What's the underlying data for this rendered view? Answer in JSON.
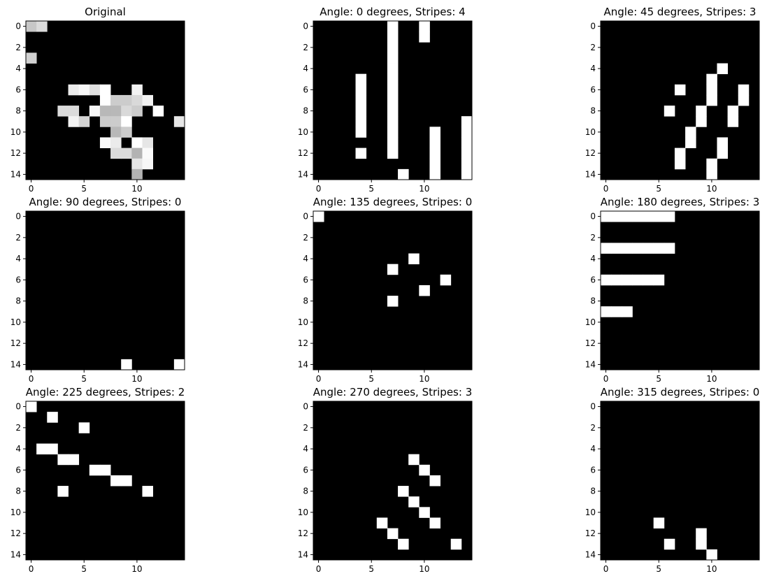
{
  "chart_data": [
    {
      "type": "heatmap",
      "title": "Original",
      "colormap": "gray",
      "xticks": [
        0,
        5,
        10
      ],
      "yticks": [
        0,
        2,
        4,
        6,
        8,
        10,
        12,
        14
      ],
      "grid_size": [
        15,
        15
      ],
      "cells": [
        [
          0,
          0,
          0.78
        ],
        [
          0,
          1,
          0.86
        ],
        [
          3,
          0,
          0.82
        ],
        [
          6,
          4,
          0.92
        ],
        [
          6,
          5,
          0.97
        ],
        [
          6,
          6,
          0.88
        ],
        [
          6,
          7,
          1.0
        ],
        [
          6,
          10,
          0.95
        ],
        [
          7,
          7,
          1.0
        ],
        [
          7,
          8,
          0.8
        ],
        [
          7,
          9,
          0.8
        ],
        [
          7,
          10,
          0.85
        ],
        [
          7,
          11,
          0.95
        ],
        [
          8,
          3,
          0.86
        ],
        [
          8,
          4,
          0.86
        ],
        [
          8,
          6,
          0.97
        ],
        [
          8,
          7,
          0.72
        ],
        [
          8,
          8,
          0.72
        ],
        [
          8,
          9,
          0.85
        ],
        [
          8,
          10,
          0.8
        ],
        [
          8,
          12,
          1.0
        ],
        [
          9,
          4,
          0.95
        ],
        [
          9,
          5,
          0.83
        ],
        [
          9,
          7,
          0.8
        ],
        [
          9,
          8,
          0.8
        ],
        [
          9,
          9,
          1.0
        ],
        [
          9,
          14,
          0.9
        ],
        [
          10,
          8,
          0.72
        ],
        [
          10,
          9,
          0.8
        ],
        [
          11,
          7,
          0.98
        ],
        [
          11,
          8,
          0.92
        ],
        [
          11,
          10,
          1.0
        ],
        [
          11,
          11,
          0.9
        ],
        [
          12,
          8,
          0.86
        ],
        [
          12,
          9,
          0.86
        ],
        [
          12,
          10,
          0.7
        ],
        [
          12,
          11,
          0.98
        ],
        [
          13,
          10,
          0.9
        ],
        [
          13,
          11,
          0.97
        ],
        [
          14,
          10,
          0.7
        ]
      ]
    },
    {
      "type": "heatmap",
      "title": "Angle: 0 degrees, Stripes: 4",
      "colormap": "gray",
      "xticks": [
        0,
        5,
        10
      ],
      "yticks": [
        0,
        2,
        4,
        6,
        8,
        10,
        12,
        14
      ],
      "grid_size": [
        15,
        15
      ],
      "cells": [
        [
          0,
          7,
          1
        ],
        [
          1,
          7,
          1
        ],
        [
          2,
          7,
          1
        ],
        [
          3,
          7,
          1
        ],
        [
          4,
          7,
          1
        ],
        [
          5,
          7,
          1
        ],
        [
          6,
          7,
          1
        ],
        [
          7,
          7,
          1
        ],
        [
          8,
          7,
          1
        ],
        [
          9,
          7,
          1
        ],
        [
          10,
          7,
          1
        ],
        [
          11,
          7,
          1
        ],
        [
          12,
          7,
          1
        ],
        [
          0,
          10,
          1
        ],
        [
          1,
          10,
          1
        ],
        [
          5,
          4,
          1
        ],
        [
          6,
          4,
          1
        ],
        [
          7,
          4,
          1
        ],
        [
          8,
          4,
          1
        ],
        [
          9,
          4,
          1
        ],
        [
          10,
          4,
          1
        ],
        [
          12,
          4,
          1
        ],
        [
          14,
          8,
          1
        ],
        [
          10,
          11,
          1
        ],
        [
          11,
          11,
          1
        ],
        [
          12,
          11,
          1
        ],
        [
          13,
          11,
          1
        ],
        [
          14,
          11,
          1
        ],
        [
          9,
          14,
          1
        ],
        [
          10,
          14,
          1
        ],
        [
          11,
          14,
          1
        ],
        [
          12,
          14,
          1
        ],
        [
          13,
          14,
          1
        ],
        [
          14,
          14,
          1
        ]
      ]
    },
    {
      "type": "heatmap",
      "title": "Angle: 45 degrees, Stripes: 3",
      "colormap": "gray",
      "xticks": [
        0,
        5,
        10
      ],
      "yticks": [
        0,
        2,
        4,
        6,
        8,
        10,
        12,
        14
      ],
      "grid_size": [
        15,
        15
      ],
      "cells": [
        [
          4,
          11,
          1
        ],
        [
          5,
          10,
          1
        ],
        [
          6,
          10,
          1
        ],
        [
          7,
          10,
          1
        ],
        [
          6,
          13,
          1
        ],
        [
          7,
          13,
          1
        ],
        [
          6,
          7,
          1
        ],
        [
          8,
          6,
          1
        ],
        [
          8,
          9,
          1
        ],
        [
          9,
          9,
          1
        ],
        [
          8,
          12,
          1
        ],
        [
          9,
          12,
          1
        ],
        [
          10,
          8,
          1
        ],
        [
          11,
          8,
          1
        ],
        [
          11,
          11,
          1
        ],
        [
          12,
          11,
          1
        ],
        [
          12,
          7,
          1
        ],
        [
          13,
          7,
          1
        ],
        [
          13,
          10,
          1
        ],
        [
          14,
          10,
          1
        ]
      ]
    },
    {
      "type": "heatmap",
      "title": "Angle: 90 degrees, Stripes: 0",
      "colormap": "gray",
      "xticks": [
        0,
        5,
        10
      ],
      "yticks": [
        0,
        2,
        4,
        6,
        8,
        10,
        12,
        14
      ],
      "grid_size": [
        15,
        15
      ],
      "cells": [
        [
          14,
          9,
          1
        ],
        [
          14,
          14,
          1
        ]
      ]
    },
    {
      "type": "heatmap",
      "title": "Angle: 135 degrees, Stripes: 0",
      "colormap": "gray",
      "xticks": [
        0,
        5,
        10
      ],
      "yticks": [
        0,
        2,
        4,
        6,
        8,
        10,
        12,
        14
      ],
      "grid_size": [
        15,
        15
      ],
      "cells": [
        [
          0,
          0,
          1
        ],
        [
          4,
          9,
          1
        ],
        [
          5,
          7,
          1
        ],
        [
          6,
          12,
          1
        ],
        [
          7,
          10,
          1
        ],
        [
          8,
          7,
          1
        ]
      ]
    },
    {
      "type": "heatmap",
      "title": "Angle: 180 degrees, Stripes: 3",
      "colormap": "gray",
      "xticks": [
        0,
        5,
        10
      ],
      "yticks": [
        0,
        2,
        4,
        6,
        8,
        10,
        12,
        14
      ],
      "grid_size": [
        15,
        15
      ],
      "cells": [
        [
          0,
          0,
          1
        ],
        [
          0,
          1,
          1
        ],
        [
          0,
          2,
          1
        ],
        [
          0,
          3,
          1
        ],
        [
          0,
          4,
          1
        ],
        [
          0,
          5,
          1
        ],
        [
          0,
          6,
          1
        ],
        [
          3,
          0,
          1
        ],
        [
          3,
          1,
          1
        ],
        [
          3,
          2,
          1
        ],
        [
          3,
          3,
          1
        ],
        [
          3,
          4,
          1
        ],
        [
          3,
          5,
          1
        ],
        [
          3,
          6,
          1
        ],
        [
          6,
          0,
          1
        ],
        [
          6,
          1,
          1
        ],
        [
          6,
          2,
          1
        ],
        [
          6,
          3,
          1
        ],
        [
          6,
          4,
          1
        ],
        [
          6,
          5,
          1
        ],
        [
          9,
          0,
          1
        ],
        [
          9,
          1,
          1
        ],
        [
          9,
          2,
          1
        ]
      ]
    },
    {
      "type": "heatmap",
      "title": "Angle: 225 degrees, Stripes: 2",
      "colormap": "gray",
      "xticks": [
        0,
        5,
        10
      ],
      "yticks": [
        0,
        2,
        4,
        6,
        8,
        10,
        12,
        14
      ],
      "grid_size": [
        15,
        15
      ],
      "cells": [
        [
          0,
          0,
          1
        ],
        [
          1,
          2,
          1
        ],
        [
          2,
          5,
          1
        ],
        [
          4,
          1,
          1
        ],
        [
          4,
          2,
          1
        ],
        [
          5,
          3,
          1
        ],
        [
          5,
          4,
          1
        ],
        [
          6,
          6,
          1
        ],
        [
          6,
          7,
          1
        ],
        [
          7,
          8,
          1
        ],
        [
          7,
          9,
          1
        ],
        [
          8,
          3,
          1
        ],
        [
          8,
          11,
          1
        ]
      ]
    },
    {
      "type": "heatmap",
      "title": "Angle: 270 degrees, Stripes: 3",
      "colormap": "gray",
      "xticks": [
        0,
        5,
        10
      ],
      "yticks": [
        0,
        2,
        4,
        6,
        8,
        10,
        12,
        14
      ],
      "grid_size": [
        15,
        15
      ],
      "cells": [
        [
          5,
          9,
          1
        ],
        [
          6,
          10,
          1
        ],
        [
          7,
          11,
          1
        ],
        [
          8,
          8,
          1
        ],
        [
          9,
          9,
          1
        ],
        [
          10,
          10,
          1
        ],
        [
          11,
          11,
          1
        ],
        [
          11,
          6,
          1
        ],
        [
          12,
          7,
          1
        ],
        [
          13,
          8,
          1
        ],
        [
          13,
          13,
          1
        ]
      ]
    },
    {
      "type": "heatmap",
      "title": "Angle: 315 degrees, Stripes: 0",
      "colormap": "gray",
      "xticks": [
        0,
        5,
        10
      ],
      "yticks": [
        0,
        2,
        4,
        6,
        8,
        10,
        12,
        14
      ],
      "grid_size": [
        15,
        15
      ],
      "cells": [
        [
          11,
          5,
          1
        ],
        [
          12,
          9,
          1
        ],
        [
          13,
          6,
          1
        ],
        [
          13,
          9,
          1
        ],
        [
          14,
          10,
          1
        ]
      ]
    }
  ]
}
